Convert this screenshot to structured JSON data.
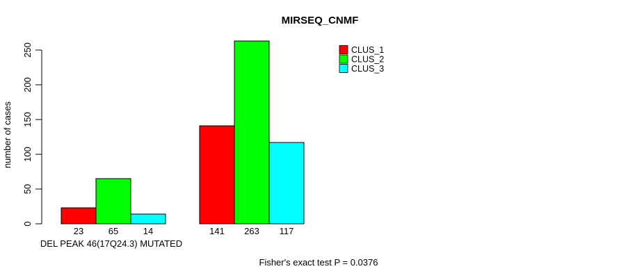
{
  "chart_data": {
    "type": "bar",
    "title": "MIRSEQ_CNMF",
    "ylabel": "number of cases",
    "xlabel": "DEL PEAK 46(17Q24.3) MUTATED",
    "footer": "Fisher's exact test P = 0.0376",
    "ylim": [
      0,
      250
    ],
    "yticks": [
      0,
      50,
      100,
      150,
      200,
      250
    ],
    "grid": false,
    "legend_position": "top-right",
    "group_count": 2,
    "series": [
      {
        "name": "CLUS_1",
        "color": "#FF0000",
        "values": [
          23,
          141
        ]
      },
      {
        "name": "CLUS_2",
        "color": "#00FF00",
        "values": [
          65,
          263
        ]
      },
      {
        "name": "CLUS_3",
        "color": "#00FFFF",
        "values": [
          14,
          117
        ]
      }
    ]
  }
}
